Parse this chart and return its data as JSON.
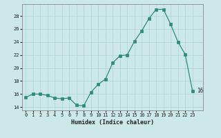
{
  "x": [
    0,
    1,
    2,
    3,
    4,
    5,
    6,
    7,
    8,
    9,
    10,
    11,
    12,
    13,
    14,
    15,
    16,
    17,
    18,
    19,
    20,
    21,
    22,
    23
  ],
  "y": [
    15.5,
    16.0,
    16.0,
    15.8,
    15.4,
    15.3,
    15.4,
    14.3,
    14.2,
    16.3,
    17.5,
    18.3,
    20.8,
    21.9,
    22.0,
    24.1,
    25.7,
    27.6,
    29.0,
    29.0,
    26.7,
    24.0,
    22.1,
    16.5
  ],
  "xlabel": "Humidex (Indice chaleur)",
  "xlim": [
    -0.5,
    24.5
  ],
  "ylim": [
    13.5,
    29.8
  ],
  "yticks": [
    14,
    16,
    18,
    20,
    22,
    24,
    26,
    28
  ],
  "xticks": [
    0,
    1,
    2,
    3,
    4,
    5,
    6,
    7,
    8,
    9,
    10,
    11,
    12,
    13,
    14,
    15,
    16,
    17,
    18,
    19,
    20,
    21,
    22,
    23
  ],
  "line_color": "#2d8b7a",
  "marker_color": "#2d8b7a",
  "bg_color": "#cce8e8",
  "grid_color": "#aad4d4",
  "axis_color": "#888888",
  "font_color": "#222222",
  "font_family": "monospace",
  "last_label": "16",
  "last_x": 23,
  "last_y": 16.5
}
